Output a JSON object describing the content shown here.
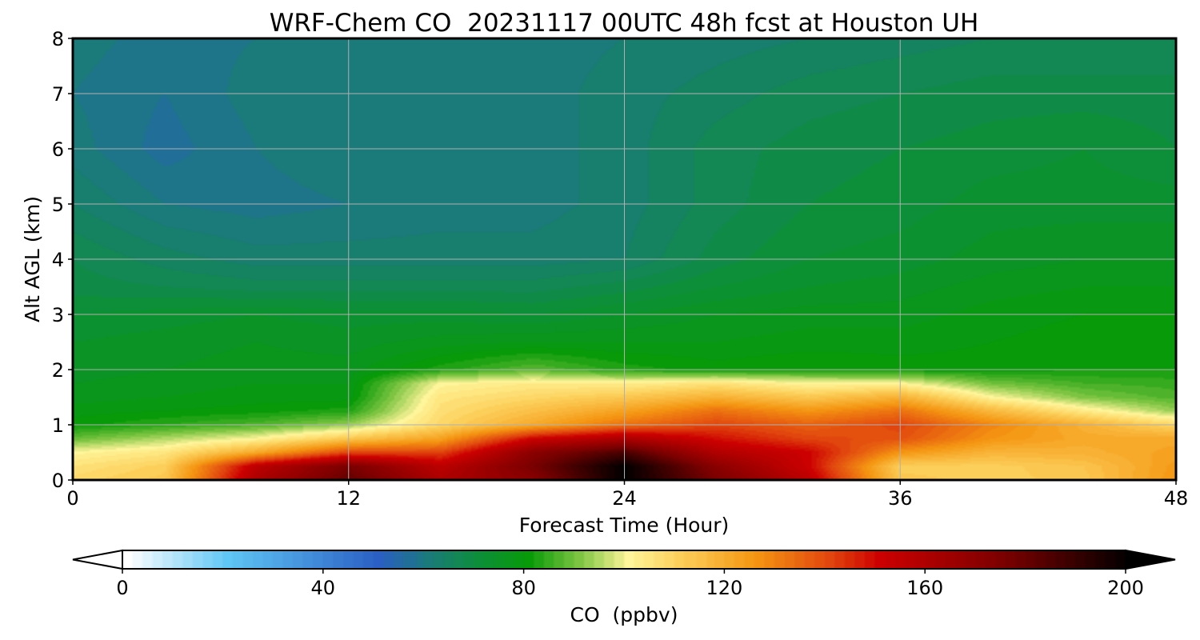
{
  "chart_data": {
    "type": "heatmap",
    "title": "WRF-Chem CO  20231117 00UTC 48h fcst at Houston UH",
    "xlabel": "Forecast Time (Hour)",
    "ylabel": "Alt AGL (km)",
    "xlim": [
      0,
      48
    ],
    "ylim": [
      0,
      8
    ],
    "x_ticks": [
      0,
      12,
      24,
      36,
      48
    ],
    "y_ticks": [
      0,
      1,
      2,
      3,
      4,
      5,
      6,
      7,
      8
    ],
    "grid": true,
    "colorbar": {
      "label": "CO  (ppbv)",
      "min": 0,
      "max": 200,
      "ticks": [
        0,
        40,
        80,
        120,
        160,
        200
      ],
      "extend": "both",
      "orientation": "horizontal",
      "placement": "bottom",
      "colormap_stops": [
        {
          "value": 0,
          "color": "#ffffff"
        },
        {
          "value": 20,
          "color": "#5fc6f5"
        },
        {
          "value": 50,
          "color": "#2b5fc4"
        },
        {
          "value": 60,
          "color": "#1b7a7a"
        },
        {
          "value": 70,
          "color": "#0d8f3a"
        },
        {
          "value": 80,
          "color": "#089a08"
        },
        {
          "value": 90,
          "color": "#7cc441"
        },
        {
          "value": 100,
          "color": "#fff59a"
        },
        {
          "value": 110,
          "color": "#fccf5a"
        },
        {
          "value": 125,
          "color": "#f59612"
        },
        {
          "value": 140,
          "color": "#e1460e"
        },
        {
          "value": 150,
          "color": "#cc0000"
        },
        {
          "value": 175,
          "color": "#7a0000"
        },
        {
          "value": 200,
          "color": "#000000"
        }
      ]
    },
    "x": [
      0,
      4,
      8,
      12,
      16,
      20,
      24,
      28,
      32,
      36,
      40,
      44,
      48
    ],
    "y": [
      0,
      0.25,
      0.5,
      0.75,
      1,
      1.25,
      1.5,
      1.75,
      2,
      2.5,
      3,
      3.5,
      4,
      5,
      6,
      7,
      8
    ],
    "values": [
      [
        108,
        112,
        160,
        180,
        160,
        170,
        200,
        175,
        155,
        112,
        110,
        112,
        125
      ],
      [
        105,
        110,
        155,
        175,
        155,
        175,
        200,
        170,
        150,
        110,
        110,
        113,
        124
      ],
      [
        100,
        104,
        120,
        140,
        140,
        170,
        185,
        158,
        150,
        125,
        117,
        118,
        122
      ],
      [
        88,
        94,
        100,
        112,
        122,
        150,
        160,
        148,
        140,
        138,
        125,
        120,
        120
      ],
      [
        80,
        83,
        86,
        92,
        108,
        120,
        132,
        140,
        135,
        140,
        128,
        118,
        108
      ],
      [
        78,
        79,
        80,
        82,
        106,
        114,
        122,
        132,
        125,
        132,
        116,
        103,
        92
      ],
      [
        76,
        77,
        78,
        78,
        104,
        108,
        112,
        118,
        112,
        118,
        100,
        90,
        86
      ],
      [
        75,
        76,
        77,
        77,
        100,
        103,
        102,
        105,
        100,
        100,
        89,
        85,
        84
      ],
      [
        74,
        75,
        76,
        76,
        82,
        87,
        82,
        80,
        81,
        80,
        80,
        81,
        81
      ],
      [
        73,
        74,
        75,
        74,
        76,
        77,
        77,
        77,
        78,
        78,
        79,
        80,
        80
      ],
      [
        71,
        72,
        73,
        72,
        72,
        71,
        73,
        75,
        76,
        76,
        78,
        79,
        79
      ],
      [
        68,
        67,
        66,
        66,
        66,
        66,
        68,
        71,
        73,
        74,
        76,
        77,
        77
      ],
      [
        67,
        64,
        62,
        62,
        62,
        62,
        63,
        68,
        71,
        72,
        74,
        75,
        75
      ],
      [
        63,
        59,
        58,
        59,
        60,
        60,
        62,
        66,
        69,
        70,
        72,
        72,
        72
      ],
      [
        60,
        56,
        59,
        61,
        60,
        60,
        62,
        66,
        68,
        69,
        70,
        71,
        69
      ],
      [
        59,
        57,
        60,
        61,
        60,
        60,
        62,
        64,
        66,
        67,
        68,
        68,
        68
      ],
      [
        60,
        58,
        59,
        60,
        60,
        60,
        61,
        62,
        63,
        64,
        65,
        65,
        65
      ]
    ]
  }
}
